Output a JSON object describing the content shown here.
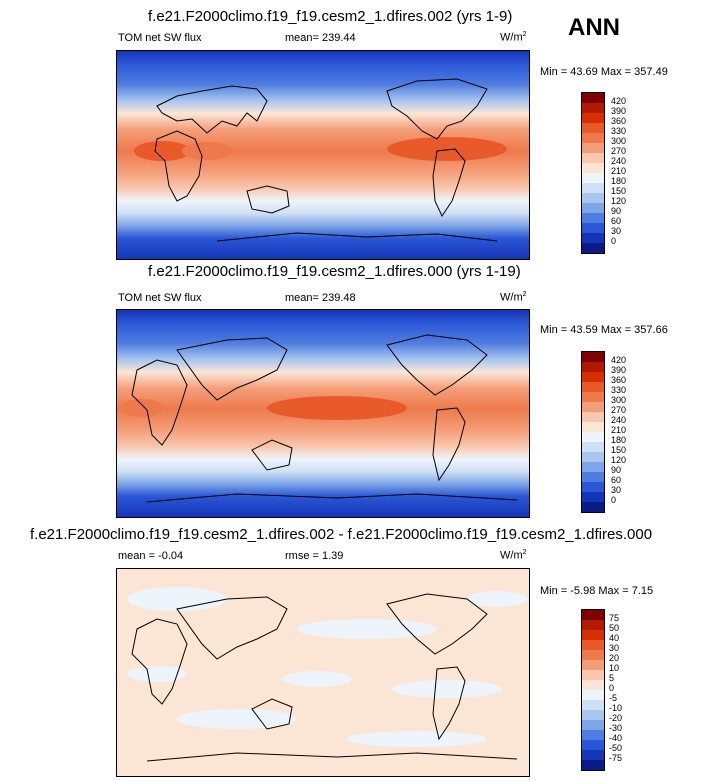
{
  "season": "ANN",
  "panels": [
    {
      "title": "f.e21.F2000climo.f19_f19.cesm2_1.dfires.002 (yrs 1-9)",
      "left_label": "TOM net SW flux",
      "center_label": "mean= 239.44",
      "units": "W/m",
      "units_sup": "2",
      "minmax": "Min =  43.69 Max = 357.49"
    },
    {
      "title": "f.e21.F2000climo.f19_f19.cesm2_1.dfires.000 (yrs 1-19)",
      "left_label": "TOM net SW flux",
      "center_label": "mean= 239.48",
      "units": "W/m",
      "units_sup": "2",
      "minmax": "Min =  43.59 Max = 357.66"
    },
    {
      "title": "f.e21.F2000climo.f19_f19.cesm2_1.dfires.002 - f.e21.F2000climo.f19_f19.cesm2_1.dfires.000",
      "left_label": "mean =  -0.04",
      "center_label": "rmse =   1.39",
      "units": "W/m",
      "units_sup": "2",
      "minmax": "Min =  -5.98 Max =  7.15"
    }
  ],
  "chart_data": [
    {
      "type": "heatmap",
      "title": "f.e21.F2000climo.f19_f19.cesm2_1.dfires.002 (yrs 1-9)",
      "variable": "TOM net SW flux",
      "units": "W/m2",
      "mean": 239.44,
      "min": 43.69,
      "max": 357.49,
      "colorbar_levels": [
        "420",
        "390",
        "360",
        "330",
        "300",
        "270",
        "240",
        "210",
        "180",
        "150",
        "120",
        "90",
        "60",
        "30",
        "0"
      ],
      "colorbar_colors": [
        "#7f0000",
        "#b21a00",
        "#d63000",
        "#e85a2a",
        "#ee7a4c",
        "#f49e78",
        "#f9c7ad",
        "#fbe6d6",
        "#eef4fb",
        "#cfe0f5",
        "#a9c6ee",
        "#7ea6e6",
        "#4f7de0",
        "#2a57d6",
        "#1535b8",
        "#091b88"
      ]
    },
    {
      "type": "heatmap",
      "title": "f.e21.F2000climo.f19_f19.cesm2_1.dfires.000 (yrs 1-19)",
      "variable": "TOM net SW flux",
      "units": "W/m2",
      "mean": 239.48,
      "min": 43.59,
      "max": 357.66,
      "colorbar_levels": [
        "420",
        "390",
        "360",
        "330",
        "300",
        "270",
        "240",
        "210",
        "180",
        "150",
        "120",
        "90",
        "60",
        "30",
        "0"
      ],
      "colorbar_colors": [
        "#7f0000",
        "#b21a00",
        "#d63000",
        "#e85a2a",
        "#ee7a4c",
        "#f49e78",
        "#f9c7ad",
        "#fbe6d6",
        "#eef4fb",
        "#cfe0f5",
        "#a9c6ee",
        "#7ea6e6",
        "#4f7de0",
        "#2a57d6",
        "#1535b8",
        "#091b88"
      ]
    },
    {
      "type": "heatmap",
      "title": "f.e21.F2000climo.f19_f19.cesm2_1.dfires.002 - f.e21.F2000climo.f19_f19.cesm2_1.dfires.000",
      "units": "W/m2",
      "mean": -0.04,
      "rmse": 1.39,
      "min": -5.98,
      "max": 7.15,
      "colorbar_levels": [
        "75",
        "50",
        "40",
        "30",
        "20",
        "10",
        "5",
        "0",
        "-5",
        "-10",
        "-20",
        "-30",
        "-40",
        "-50",
        "-75"
      ],
      "colorbar_colors": [
        "#7f0000",
        "#b21a00",
        "#d63000",
        "#e85a2a",
        "#ee7a4c",
        "#f49e78",
        "#f9c7ad",
        "#fbe6d6",
        "#eef4fb",
        "#cfe0f5",
        "#a9c6ee",
        "#7ea6e6",
        "#4f7de0",
        "#2a57d6",
        "#1535b8",
        "#091b88"
      ]
    }
  ]
}
